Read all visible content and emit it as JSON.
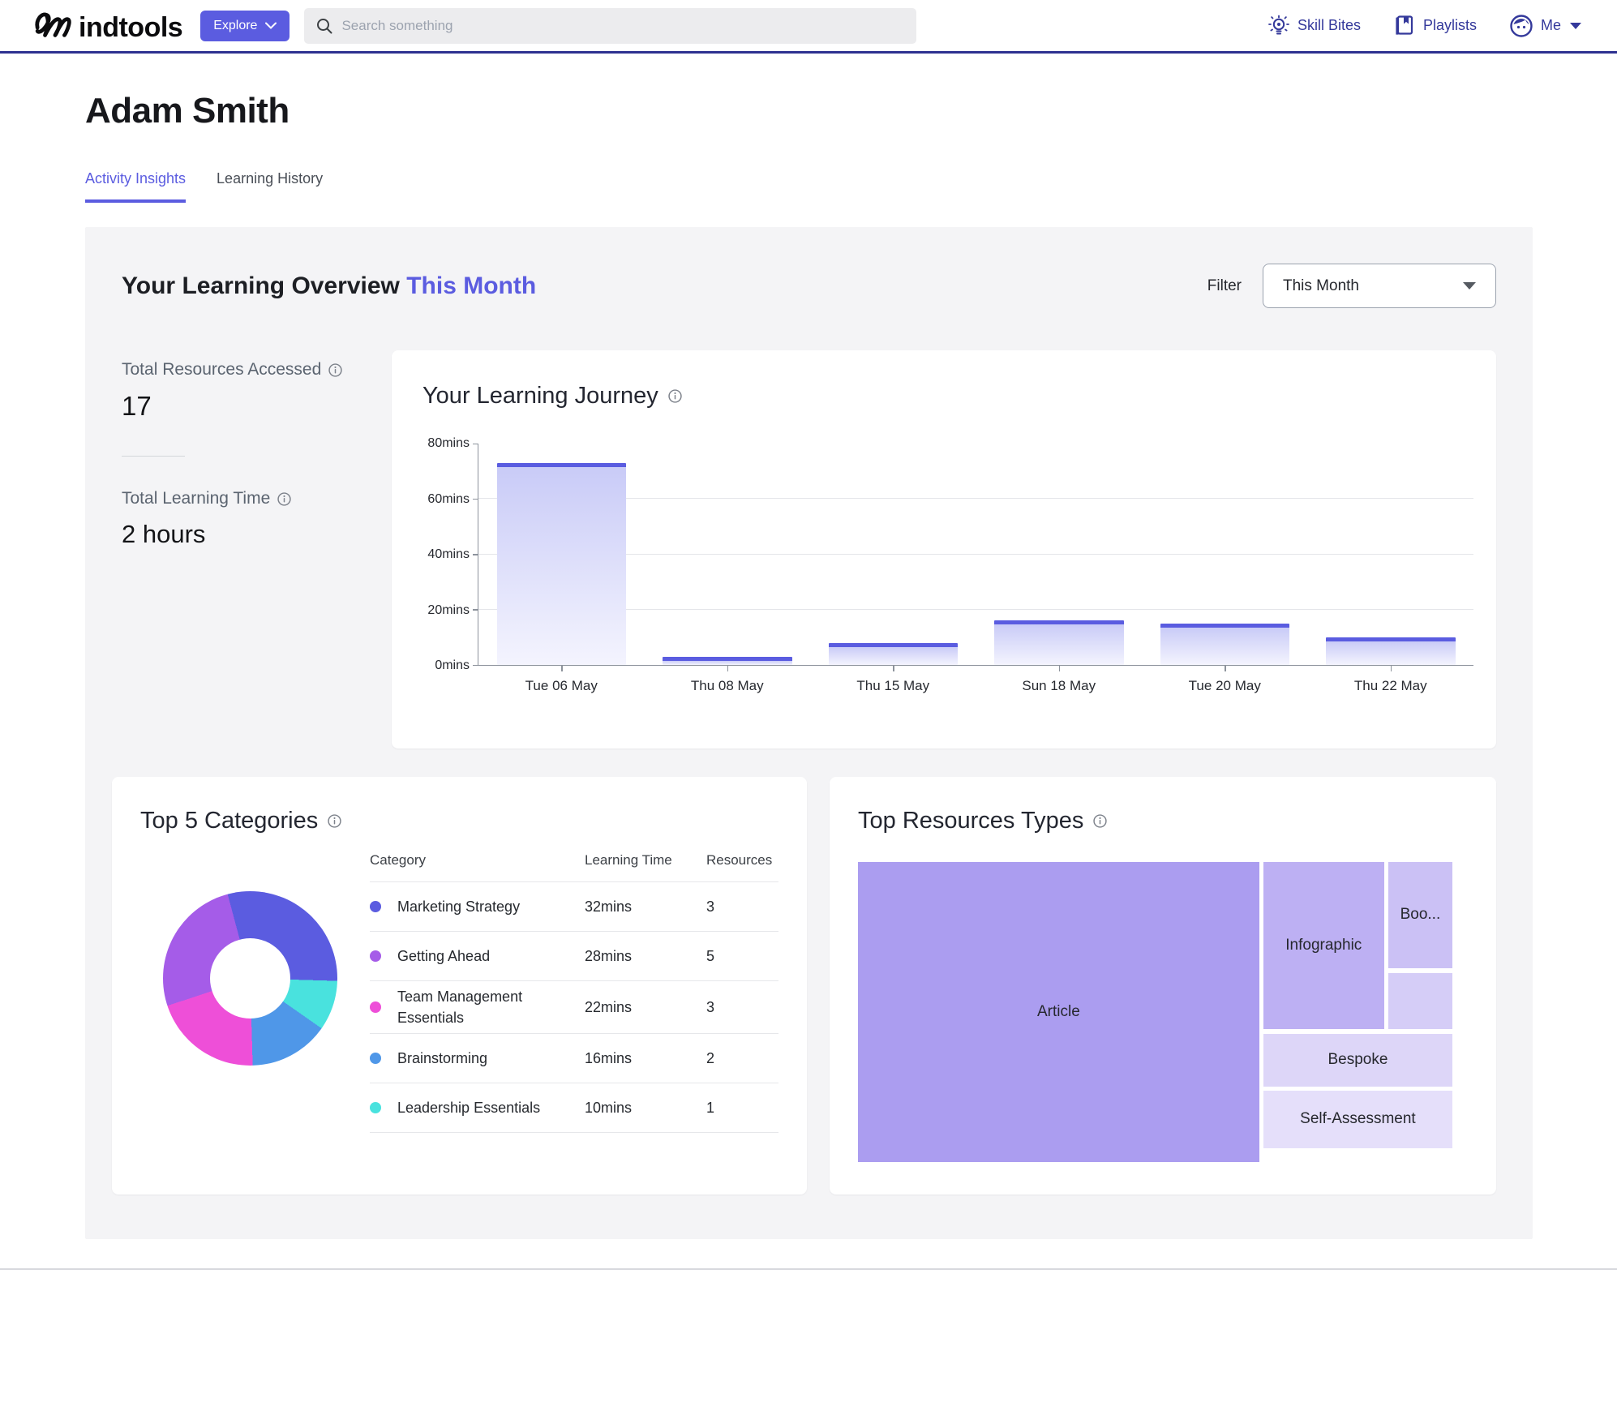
{
  "header": {
    "logo_text": "mindtools",
    "logo_suffix": "indtools",
    "explore_label": "Explore",
    "search_placeholder": "Search something",
    "nav": [
      {
        "label": "Skill Bites",
        "icon": "lightbulb-icon"
      },
      {
        "label": "Playlists",
        "icon": "book-icon"
      },
      {
        "label": "Me",
        "icon": "avatar-icon"
      }
    ]
  },
  "page": {
    "title": "Adam Smith"
  },
  "tabs": [
    {
      "label": "Activity Insights",
      "active": true
    },
    {
      "label": "Learning History",
      "active": false
    }
  ],
  "overview": {
    "title": "Your Learning Overview",
    "title_highlight": "This Month",
    "filter_label": "Filter",
    "filter_value": "This Month",
    "stats": [
      {
        "label": "Total Resources Accessed",
        "value": "17"
      },
      {
        "label": "Total Learning Time",
        "value": "2 hours"
      }
    ]
  },
  "chart_data": [
    {
      "type": "bar",
      "title": "Your Learning Journey",
      "categories": [
        "Tue 06 May",
        "Thu 08 May",
        "Thu 15 May",
        "Sun 18 May",
        "Tue 20 May",
        "Thu 22 May"
      ],
      "values": [
        73,
        3,
        8,
        16,
        15,
        10
      ],
      "unit": "mins",
      "ylim": [
        0,
        80
      ],
      "yticks": [
        {
          "label": "0mins",
          "value": 0
        },
        {
          "label": "20mins",
          "value": 20
        },
        {
          "label": "40mins",
          "value": 40
        },
        {
          "label": "60mins",
          "value": 60
        },
        {
          "label": "80mins",
          "value": 80
        }
      ],
      "grid": "horizontal",
      "legend": "none",
      "bar_top_color": "#5a5ce0",
      "bar_gradient_top": "#c9cbf7",
      "bar_gradient_bottom": "#f4f4fe"
    },
    {
      "type": "pie",
      "title": "Top 5 Categories",
      "headers": [
        "Category",
        "Learning Time",
        "Resources"
      ],
      "rows": [
        {
          "label": "Marketing Strategy",
          "learning_time": "32mins",
          "minutes": 32,
          "resources": "3",
          "color": "#5b5ce0"
        },
        {
          "label": "Getting Ahead",
          "learning_time": "28mins",
          "minutes": 28,
          "resources": "5",
          "color": "#a55ce8"
        },
        {
          "label": "Team Management Essentials",
          "learning_time": "22mins",
          "minutes": 22,
          "resources": "3",
          "color": "#ee4fd8"
        },
        {
          "label": "Brainstorming",
          "learning_time": "16mins",
          "minutes": 16,
          "resources": "2",
          "color": "#4f97e8"
        },
        {
          "label": "Leadership Essentials",
          "learning_time": "10mins",
          "minutes": 10,
          "resources": "1",
          "color": "#49e2de"
        }
      ],
      "donut_clockwise_order": [
        0,
        4,
        3,
        2,
        1
      ],
      "start_angle_deg": -15
    },
    {
      "type": "treemap",
      "title": "Top Resources Types",
      "blocks": [
        {
          "label": "Article",
          "color": "#ab9df0",
          "x_pct": 0,
          "y_pct": 0,
          "w_pct": 67.5,
          "h_pct": 100
        },
        {
          "label": "Infographic",
          "color": "#bdb0f3",
          "x_pct": 68.2,
          "y_pct": 0,
          "w_pct": 20.3,
          "h_pct": 55.7
        },
        {
          "label": "Boo...",
          "color": "#cbc1f5",
          "x_pct": 89.2,
          "y_pct": 0,
          "w_pct": 10.8,
          "h_pct": 35.4
        },
        {
          "label": "",
          "color": "#d5cdf7",
          "x_pct": 89.2,
          "y_pct": 36.9,
          "w_pct": 10.8,
          "h_pct": 18.8
        },
        {
          "label": "Bespoke",
          "color": "#ddd6f8",
          "x_pct": 68.2,
          "y_pct": 57.2,
          "w_pct": 31.8,
          "h_pct": 17.6
        },
        {
          "label": "Self-Assessment",
          "color": "#e5dffa",
          "x_pct": 68.2,
          "y_pct": 76.3,
          "w_pct": 31.8,
          "h_pct": 19.0
        }
      ]
    }
  ],
  "colors": {
    "accent_purple": "#5b5ce0",
    "nav_indigo": "#34399b",
    "panel_bg": "#f4f4f6",
    "header_border": "#2e3190"
  }
}
